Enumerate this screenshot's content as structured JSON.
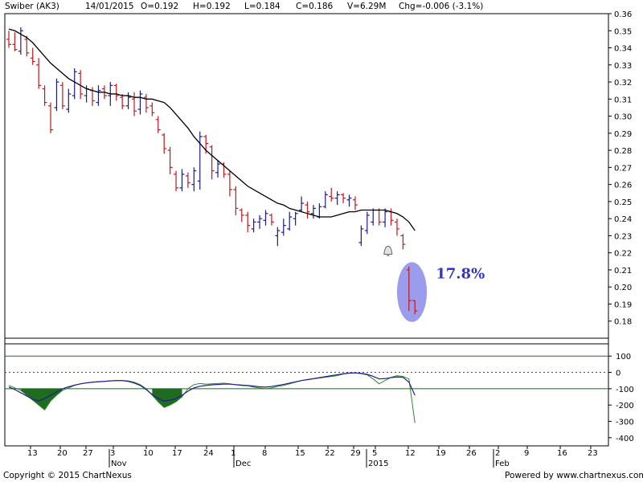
{
  "header": {
    "symbol": "Swiber (AK3)",
    "date": "14/01/2015",
    "open": "O=0.192",
    "high": "H=0.192",
    "low": "L=0.184",
    "close": "C=0.186",
    "volume": "V=6.29M",
    "change": "Chg=-0.006 (-3.1%)"
  },
  "footer": {
    "copyright": "Copyright © 2015 ChartNexus",
    "powered": "Powered by www.chartnexus.com"
  },
  "colors": {
    "up": "#1a1a8c",
    "down": "#c0181e",
    "ma": "#000000",
    "osc_fill": "#1f6b1f",
    "osc_line_green": "#2a8a2a",
    "osc_line_blue": "#1f1f90",
    "ref_line": "#1a6b1a",
    "zero_line": "#3a3ad0",
    "highlight": "#8b8bea",
    "annotation": "#3333cc"
  },
  "chart_data": [
    {
      "type": "ohlc",
      "ylim": [
        0.17,
        0.36
      ],
      "yticks": [
        "0.18",
        "0.19",
        "0.20",
        "0.21",
        "0.22",
        "0.23",
        "0.24",
        "0.25",
        "0.26",
        "0.27",
        "0.28",
        "0.29",
        "0.30",
        "0.31",
        "0.32",
        "0.33",
        "0.34",
        "0.35",
        "0.36"
      ],
      "x_ticks_day": [
        "13",
        "20",
        "27",
        "3",
        "10",
        "17",
        "24",
        "1",
        "8",
        "15",
        "22",
        "29",
        "5",
        "12",
        "19",
        "26",
        "2",
        "9",
        "16",
        "23"
      ],
      "x_ticks_month": [
        "Nov",
        "Dec",
        "2015",
        "Feb"
      ],
      "annotation": "17.8%",
      "bars": [
        {
          "o": 0.345,
          "h": 0.35,
          "l": 0.34,
          "c": 0.342
        },
        {
          "o": 0.342,
          "h": 0.349,
          "l": 0.338,
          "c": 0.339
        },
        {
          "o": 0.338,
          "h": 0.352,
          "l": 0.336,
          "c": 0.35
        },
        {
          "o": 0.345,
          "h": 0.347,
          "l": 0.335,
          "c": 0.337
        },
        {
          "o": 0.334,
          "h": 0.34,
          "l": 0.33,
          "c": 0.332
        },
        {
          "o": 0.33,
          "h": 0.334,
          "l": 0.316,
          "c": 0.318
        },
        {
          "o": 0.316,
          "h": 0.318,
          "l": 0.306,
          "c": 0.308
        },
        {
          "o": 0.306,
          "h": 0.308,
          "l": 0.29,
          "c": 0.292
        },
        {
          "o": 0.305,
          "h": 0.322,
          "l": 0.303,
          "c": 0.32
        },
        {
          "o": 0.318,
          "h": 0.32,
          "l": 0.304,
          "c": 0.306
        },
        {
          "o": 0.304,
          "h": 0.316,
          "l": 0.302,
          "c": 0.313
        },
        {
          "o": 0.312,
          "h": 0.328,
          "l": 0.31,
          "c": 0.326
        },
        {
          "o": 0.325,
          "h": 0.327,
          "l": 0.31,
          "c": 0.313
        },
        {
          "o": 0.312,
          "h": 0.318,
          "l": 0.308,
          "c": 0.316
        },
        {
          "o": 0.315,
          "h": 0.317,
          "l": 0.306,
          "c": 0.309
        },
        {
          "o": 0.308,
          "h": 0.318,
          "l": 0.306,
          "c": 0.315
        },
        {
          "o": 0.316,
          "h": 0.318,
          "l": 0.31,
          "c": 0.312
        },
        {
          "o": 0.312,
          "h": 0.32,
          "l": 0.306,
          "c": 0.318
        },
        {
          "o": 0.318,
          "h": 0.319,
          "l": 0.309,
          "c": 0.312
        },
        {
          "o": 0.311,
          "h": 0.313,
          "l": 0.304,
          "c": 0.306
        },
        {
          "o": 0.306,
          "h": 0.314,
          "l": 0.304,
          "c": 0.311
        },
        {
          "o": 0.31,
          "h": 0.314,
          "l": 0.3,
          "c": 0.303
        },
        {
          "o": 0.304,
          "h": 0.315,
          "l": 0.301,
          "c": 0.313
        },
        {
          "o": 0.311,
          "h": 0.313,
          "l": 0.302,
          "c": 0.305
        },
        {
          "o": 0.306,
          "h": 0.308,
          "l": 0.3,
          "c": 0.302
        },
        {
          "o": 0.298,
          "h": 0.3,
          "l": 0.29,
          "c": 0.292
        },
        {
          "o": 0.289,
          "h": 0.29,
          "l": 0.278,
          "c": 0.281
        },
        {
          "o": 0.28,
          "h": 0.282,
          "l": 0.266,
          "c": 0.27
        },
        {
          "o": 0.266,
          "h": 0.268,
          "l": 0.256,
          "c": 0.258
        },
        {
          "o": 0.258,
          "h": 0.269,
          "l": 0.256,
          "c": 0.266
        },
        {
          "o": 0.265,
          "h": 0.267,
          "l": 0.258,
          "c": 0.261
        },
        {
          "o": 0.26,
          "h": 0.27,
          "l": 0.256,
          "c": 0.268
        },
        {
          "o": 0.262,
          "h": 0.291,
          "l": 0.257,
          "c": 0.288
        },
        {
          "o": 0.288,
          "h": 0.289,
          "l": 0.278,
          "c": 0.284
        },
        {
          "o": 0.282,
          "h": 0.283,
          "l": 0.263,
          "c": 0.268
        },
        {
          "o": 0.267,
          "h": 0.274,
          "l": 0.264,
          "c": 0.272
        },
        {
          "o": 0.272,
          "h": 0.273,
          "l": 0.264,
          "c": 0.266
        },
        {
          "o": 0.266,
          "h": 0.268,
          "l": 0.253,
          "c": 0.257
        },
        {
          "o": 0.257,
          "h": 0.259,
          "l": 0.242,
          "c": 0.246
        },
        {
          "o": 0.245,
          "h": 0.246,
          "l": 0.238,
          "c": 0.242
        },
        {
          "o": 0.242,
          "h": 0.244,
          "l": 0.232,
          "c": 0.236
        },
        {
          "o": 0.234,
          "h": 0.24,
          "l": 0.232,
          "c": 0.238
        },
        {
          "o": 0.238,
          "h": 0.242,
          "l": 0.234,
          "c": 0.24
        },
        {
          "o": 0.239,
          "h": 0.245,
          "l": 0.236,
          "c": 0.243
        },
        {
          "o": 0.242,
          "h": 0.243,
          "l": 0.236,
          "c": 0.238
        },
        {
          "o": 0.23,
          "h": 0.235,
          "l": 0.224,
          "c": 0.233
        },
        {
          "o": 0.232,
          "h": 0.24,
          "l": 0.23,
          "c": 0.236
        },
        {
          "o": 0.234,
          "h": 0.244,
          "l": 0.233,
          "c": 0.241
        },
        {
          "o": 0.24,
          "h": 0.244,
          "l": 0.236,
          "c": 0.243
        },
        {
          "o": 0.245,
          "h": 0.253,
          "l": 0.244,
          "c": 0.249
        },
        {
          "o": 0.248,
          "h": 0.25,
          "l": 0.24,
          "c": 0.244
        },
        {
          "o": 0.243,
          "h": 0.248,
          "l": 0.24,
          "c": 0.246
        },
        {
          "o": 0.241,
          "h": 0.249,
          "l": 0.24,
          "c": 0.247
        },
        {
          "o": 0.247,
          "h": 0.256,
          "l": 0.246,
          "c": 0.254
        },
        {
          "o": 0.253,
          "h": 0.258,
          "l": 0.25,
          "c": 0.252
        },
        {
          "o": 0.252,
          "h": 0.256,
          "l": 0.248,
          "c": 0.254
        },
        {
          "o": 0.254,
          "h": 0.255,
          "l": 0.249,
          "c": 0.252
        },
        {
          "o": 0.251,
          "h": 0.254,
          "l": 0.247,
          "c": 0.252
        },
        {
          "o": 0.251,
          "h": 0.253,
          "l": 0.245,
          "c": 0.248
        },
        {
          "o": 0.226,
          "h": 0.236,
          "l": 0.224,
          "c": 0.234
        },
        {
          "o": 0.233,
          "h": 0.244,
          "l": 0.231,
          "c": 0.242
        },
        {
          "o": 0.238,
          "h": 0.246,
          "l": 0.236,
          "c": 0.245
        },
        {
          "o": 0.245,
          "h": 0.246,
          "l": 0.236,
          "c": 0.238
        },
        {
          "o": 0.238,
          "h": 0.246,
          "l": 0.235,
          "c": 0.244
        },
        {
          "o": 0.244,
          "h": 0.246,
          "l": 0.236,
          "c": 0.239
        },
        {
          "o": 0.238,
          "h": 0.24,
          "l": 0.23,
          "c": 0.234
        },
        {
          "o": 0.23,
          "h": 0.231,
          "l": 0.222,
          "c": 0.225
        },
        {
          "o": 0.21,
          "h": 0.212,
          "l": 0.186,
          "c": 0.192
        },
        {
          "o": 0.192,
          "h": 0.192,
          "l": 0.184,
          "c": 0.186
        }
      ],
      "ma": [
        0.351,
        0.35,
        0.348,
        0.346,
        0.343,
        0.339,
        0.335,
        0.331,
        0.328,
        0.325,
        0.322,
        0.32,
        0.318,
        0.316,
        0.315,
        0.314,
        0.314,
        0.313,
        0.313,
        0.312,
        0.312,
        0.311,
        0.311,
        0.31,
        0.31,
        0.309,
        0.308,
        0.305,
        0.301,
        0.297,
        0.293,
        0.288,
        0.284,
        0.28,
        0.277,
        0.274,
        0.271,
        0.268,
        0.265,
        0.262,
        0.259,
        0.257,
        0.255,
        0.253,
        0.251,
        0.249,
        0.248,
        0.246,
        0.245,
        0.244,
        0.243,
        0.242,
        0.241,
        0.241,
        0.241,
        0.242,
        0.243,
        0.244,
        0.244,
        0.245,
        0.245,
        0.245,
        0.245,
        0.245,
        0.244,
        0.243,
        0.241,
        0.238,
        0.233
      ],
      "highlight": {
        "center_bar": 67.5,
        "center_value": 0.197,
        "half_width_bars": 2.5,
        "half_height_value": 0.0175
      }
    },
    {
      "type": "oscillator",
      "ylim": [
        -450,
        175
      ],
      "yticks": [
        "100",
        "0",
        "-100",
        "-200",
        "-300",
        "-400"
      ],
      "ref_levels": [
        100,
        -100
      ],
      "zero_level": 0,
      "cci": [
        -80,
        -95,
        -110,
        -140,
        -170,
        -200,
        -230,
        -175,
        -140,
        -110,
        -95,
        -80,
        -70,
        -65,
        -60,
        -58,
        -55,
        -52,
        -50,
        -50,
        -52,
        -60,
        -75,
        -100,
        -140,
        -180,
        -215,
        -200,
        -180,
        -150,
        -100,
        -75,
        -68,
        -72,
        -70,
        -68,
        -66,
        -70,
        -76,
        -80,
        -82,
        -90,
        -95,
        -100,
        -95,
        -85,
        -80,
        -70,
        -60,
        -50,
        -45,
        -40,
        -35,
        -30,
        -25,
        -20,
        -10,
        -5,
        -3,
        -8,
        -15,
        -40,
        -70,
        -50,
        -30,
        -20,
        -25,
        -40,
        -310
      ],
      "signal": [
        -90,
        -105,
        -125,
        -145,
        -165,
        -175,
        -160,
        -140,
        -120,
        -100,
        -88,
        -78,
        -70,
        -64,
        -60,
        -57,
        -55,
        -52,
        -50,
        -50,
        -55,
        -65,
        -80,
        -105,
        -135,
        -160,
        -175,
        -170,
        -160,
        -140,
        -115,
        -95,
        -85,
        -80,
        -76,
        -74,
        -72,
        -72,
        -75,
        -78,
        -80,
        -84,
        -88,
        -90,
        -86,
        -80,
        -74,
        -66,
        -58,
        -50,
        -44,
        -38,
        -32,
        -26,
        -20,
        -14,
        -8,
        -4,
        -3,
        -6,
        -12,
        -24,
        -40,
        -38,
        -32,
        -28,
        -30,
        -60,
        -140
      ]
    }
  ]
}
